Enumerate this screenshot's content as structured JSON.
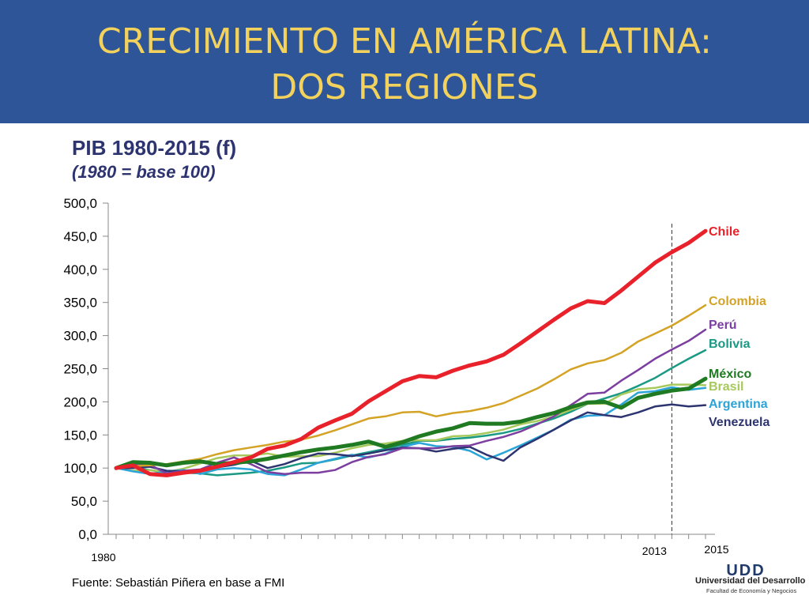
{
  "slide": {
    "title_line1": "CRECIMIENTO EN AMÉRICA LATINA:",
    "title_line2": "DOS REGIONES",
    "source": "Fuente: Sebastián Piñera en base a FMI",
    "logo_text": "UDD",
    "logo_name": "Universidad del Desarrollo",
    "logo_sub": "Facultad de Economía y Negocios"
  },
  "colors": {
    "header": "#2e5597",
    "title": "#f2d25c",
    "chart_title": "#2d3470"
  },
  "chart_data": {
    "type": "line",
    "title": "PIB 1980-2015 (f)",
    "subtitle": "(1980 = base 100)",
    "x": [
      1980,
      1981,
      1982,
      1983,
      1984,
      1985,
      1986,
      1987,
      1988,
      1989,
      1990,
      1991,
      1992,
      1993,
      1994,
      1995,
      1996,
      1997,
      1998,
      1999,
      2000,
      2001,
      2002,
      2003,
      2004,
      2005,
      2006,
      2007,
      2008,
      2009,
      2010,
      2011,
      2012,
      2013,
      2014,
      2015
    ],
    "xlim": [
      1980,
      2015
    ],
    "x_tick_labels": [
      {
        "x": 1980,
        "label": "1980"
      },
      {
        "x": 2013,
        "label": "2013"
      },
      {
        "x": 2015,
        "label": "2015"
      }
    ],
    "ylim": [
      0,
      500
    ],
    "y_ticks": [
      0,
      50,
      100,
      150,
      200,
      250,
      300,
      350,
      400,
      450,
      500
    ],
    "y_tick_labels": [
      "0,0",
      "50,0",
      "100,0",
      "150,0",
      "200,0",
      "250,0",
      "300,0",
      "350,0",
      "400,0",
      "450,0",
      "500,0"
    ],
    "forecast_start": 2013,
    "grid": false,
    "legend": "right, labels at series ends",
    "series": [
      {
        "name": "Chile",
        "color": "#e8212a",
        "width": 5,
        "values": [
          100,
          104,
          91,
          89,
          93,
          96,
          102,
          109,
          116,
          129,
          134,
          144,
          161,
          172,
          182,
          201,
          216,
          231,
          239,
          237,
          247,
          255,
          261,
          271,
          288,
          306,
          324,
          341,
          352,
          349,
          368,
          389,
          410,
          426,
          440,
          458
        ]
      },
      {
        "name": "Colombia",
        "color": "#d4a326",
        "width": 2.5,
        "values": [
          100,
          103,
          104,
          106,
          110,
          114,
          121,
          127,
          131,
          135,
          140,
          143,
          149,
          157,
          166,
          175,
          178,
          184,
          185,
          178,
          183,
          186,
          191,
          198,
          209,
          220,
          234,
          249,
          258,
          263,
          274,
          291,
          303,
          315,
          330,
          346
        ]
      },
      {
        "name": "Perú",
        "color": "#7c3fa0",
        "width": 2.5,
        "values": [
          100,
          105,
          105,
          92,
          96,
          98,
          108,
          116,
          106,
          94,
          91,
          93,
          93,
          97,
          109,
          117,
          121,
          130,
          130,
          130,
          133,
          134,
          141,
          147,
          155,
          166,
          178,
          195,
          212,
          214,
          232,
          248,
          265,
          279,
          292,
          309
        ]
      },
      {
        "name": "Bolivia",
        "color": "#1a9a84",
        "width": 2.5,
        "values": [
          100,
          101,
          97,
          93,
          93,
          92,
          89,
          91,
          93,
          96,
          101,
          107,
          108,
          113,
          119,
          124,
          129,
          135,
          141,
          141,
          144,
          146,
          149,
          153,
          159,
          167,
          175,
          185,
          197,
          205,
          213,
          224,
          236,
          251,
          265,
          278
        ]
      },
      {
        "name": "México",
        "color": "#1f7a22",
        "width": 5,
        "values": [
          100,
          109,
          108,
          104,
          108,
          110,
          106,
          108,
          110,
          114,
          119,
          124,
          128,
          131,
          135,
          140,
          132,
          139,
          148,
          155,
          160,
          168,
          167,
          167,
          170,
          177,
          183,
          192,
          199,
          200,
          191,
          206,
          212,
          217,
          220,
          235
        ]
      },
      {
        "name": "Brasil",
        "color": "#a7c95c",
        "width": 2.5,
        "values": [
          100,
          96,
          97,
          94,
          99,
          107,
          115,
          119,
          119,
          122,
          117,
          118,
          118,
          123,
          130,
          135,
          137,
          141,
          142,
          142,
          148,
          149,
          153,
          158,
          166,
          171,
          178,
          188,
          197,
          197,
          211,
          219,
          221,
          226,
          226,
          225
        ]
      },
      {
        "name": "Argentina",
        "color": "#2ba4d8",
        "width": 2.5,
        "values": [
          100,
          95,
          91,
          95,
          97,
          91,
          98,
          100,
          98,
          91,
          89,
          98,
          108,
          114,
          120,
          116,
          122,
          132,
          138,
          133,
          132,
          126,
          113,
          123,
          134,
          146,
          158,
          173,
          179,
          180,
          196,
          214,
          216,
          222,
          218,
          221
        ]
      },
      {
        "name": "Venezuela",
        "color": "#2d3470",
        "width": 2.5,
        "values": [
          100,
          100,
          102,
          96,
          95,
          96,
          101,
          105,
          111,
          100,
          106,
          115,
          122,
          121,
          118,
          122,
          127,
          131,
          130,
          125,
          129,
          132,
          120,
          111,
          131,
          144,
          158,
          172,
          184,
          180,
          177,
          184,
          193,
          196,
          193,
          195
        ]
      }
    ]
  }
}
